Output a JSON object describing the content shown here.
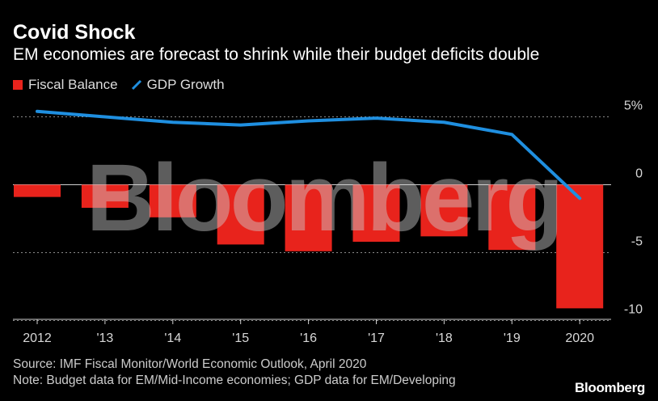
{
  "title": "Covid Shock",
  "subtitle": "EM economies are forecast to shrink while their budget deficits double",
  "legend": {
    "fiscal_balance": "Fiscal Balance",
    "gdp_growth": "GDP Growth"
  },
  "colors": {
    "bar": "#e8231c",
    "line": "#1f8fe0",
    "background": "#000000",
    "watermark": "#cfcfcf"
  },
  "watermark": "Bloomberg",
  "chart_data": {
    "type": "bar",
    "categories": [
      "2012",
      "'13",
      "'14",
      "'15",
      "'16",
      "'17",
      "'18",
      "'19",
      "2020"
    ],
    "series": [
      {
        "name": "Fiscal Balance",
        "type": "bar",
        "values": [
          -0.9,
          -1.7,
          -2.4,
          -4.4,
          -4.9,
          -4.2,
          -3.8,
          -4.8,
          -9.1
        ]
      },
      {
        "name": "GDP Growth",
        "type": "line",
        "values": [
          5.4,
          5.0,
          4.6,
          4.4,
          4.7,
          4.9,
          4.6,
          3.7,
          -1.0
        ]
      }
    ],
    "yticks": [
      "5%",
      "0",
      "-5",
      "-10"
    ],
    "ytick_values": [
      5,
      0,
      -5,
      -10
    ],
    "ylim": [
      -10.5,
      5.5
    ],
    "ygrid": true,
    "y_axis_position": "right",
    "legend_position": "top-left"
  },
  "footer": {
    "source": "Source: IMF Fiscal Monitor/World Economic Outlook, April 2020",
    "note": "Note: Budget data for EM/Mid-Income economies; GDP data for EM/Developing",
    "brand": "Bloomberg"
  }
}
